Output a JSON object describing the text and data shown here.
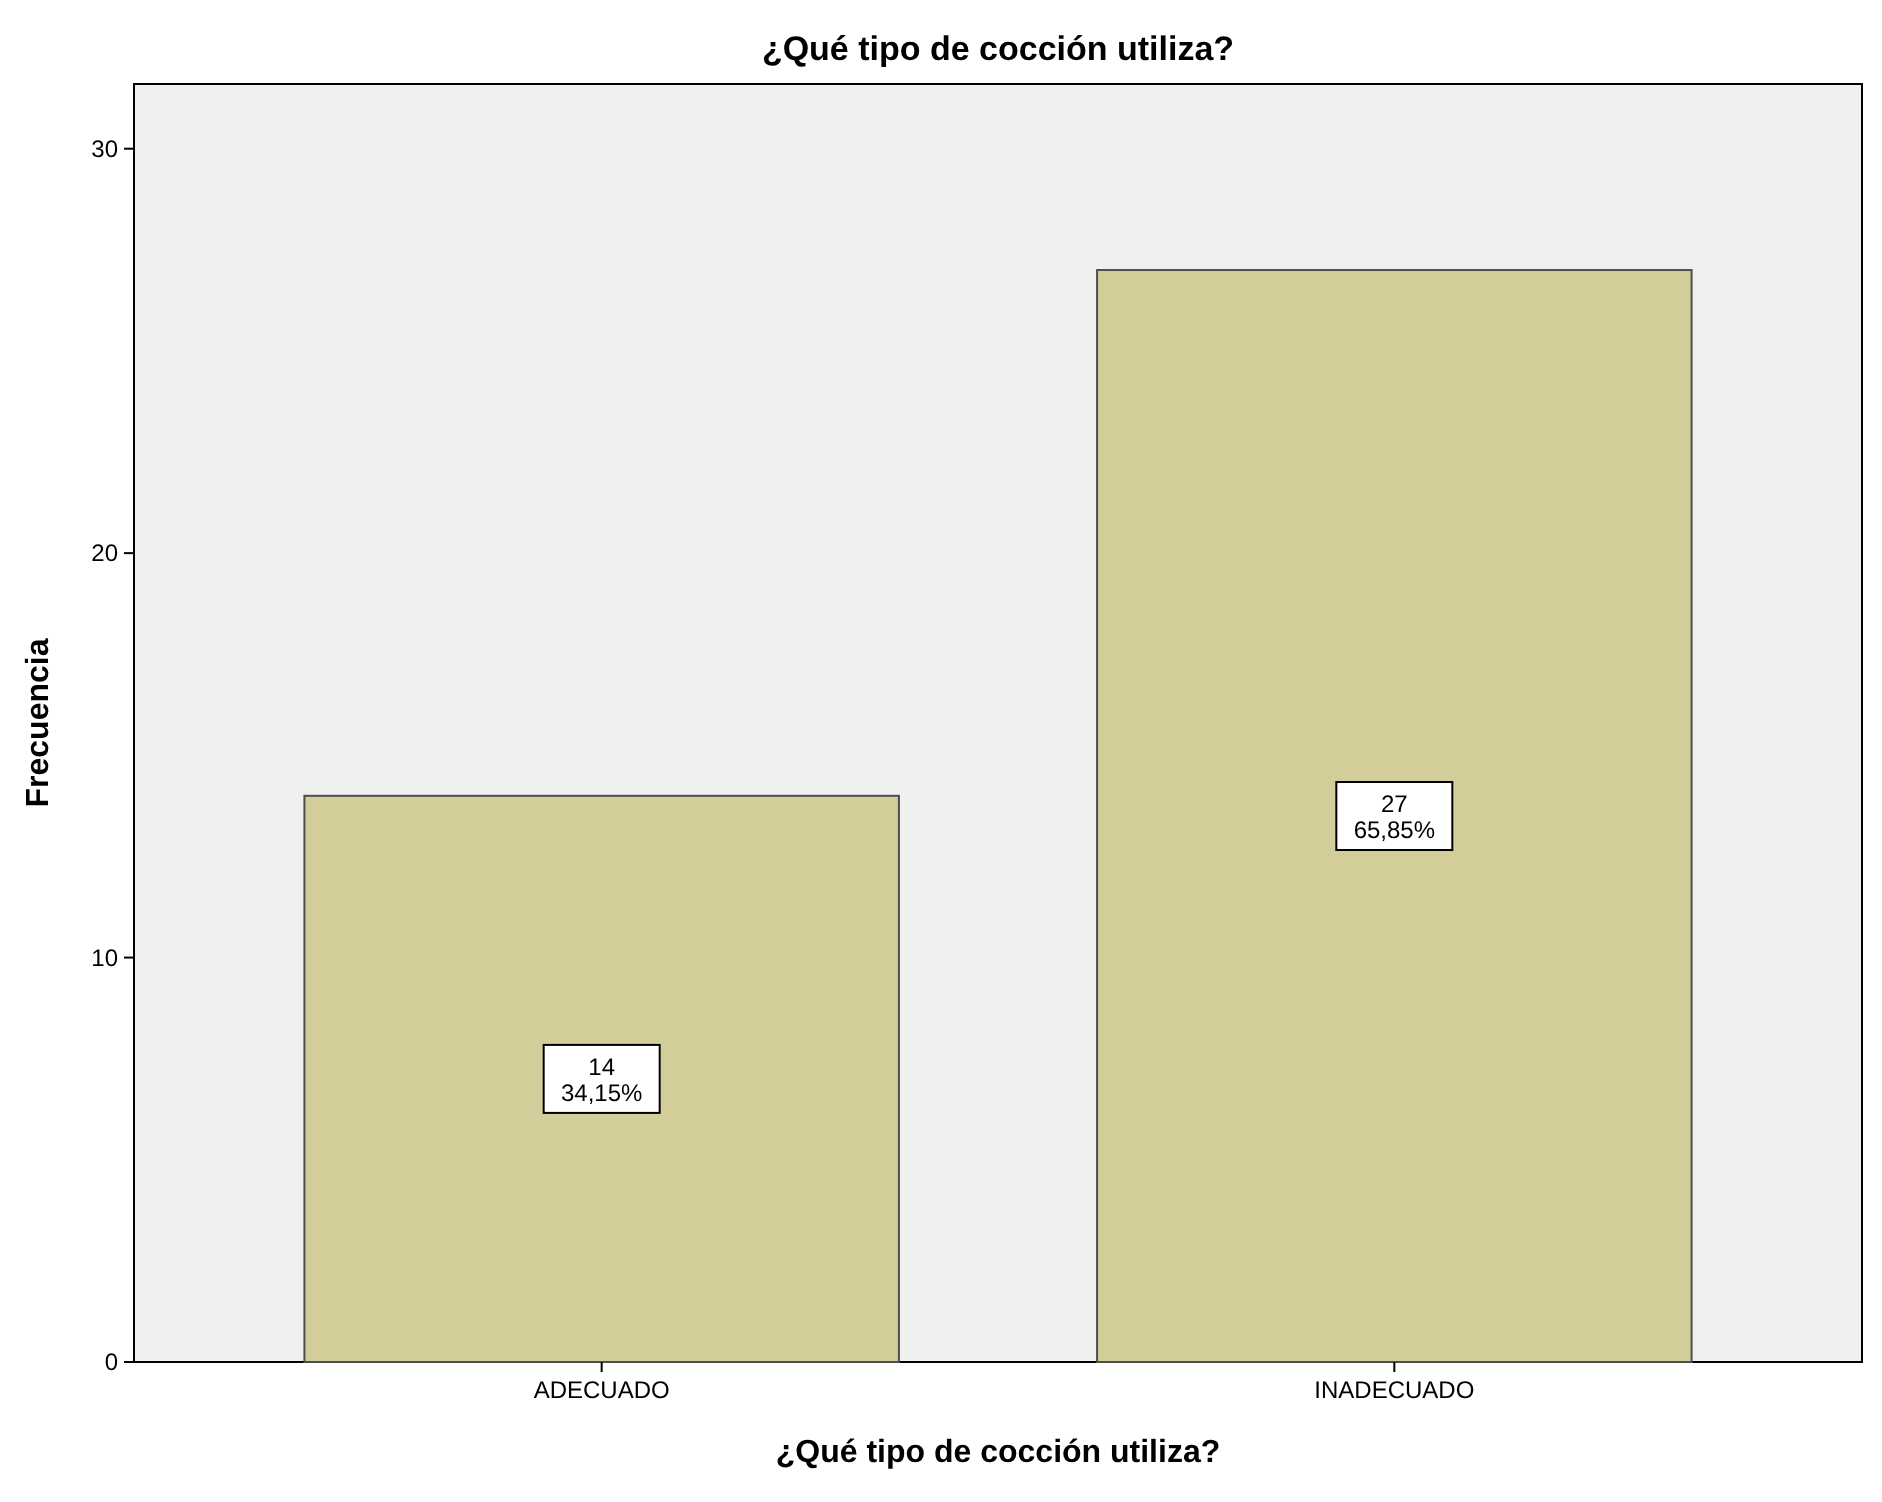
{
  "chart_data": {
    "type": "bar",
    "title": "¿Qué tipo de cocción utiliza?",
    "xlabel": "¿Qué tipo de cocción utiliza?",
    "ylabel": "Frecuencia",
    "categories": [
      "ADECUADO",
      "INADECUADO"
    ],
    "values": [
      14,
      27
    ],
    "color": "#d3ce99",
    "value_labels": [
      "14\n34,15%",
      "27\n65,85%"
    ],
    "ylim": [
      0,
      31.6
    ],
    "yticks": [
      0,
      10,
      20,
      30
    ],
    "grid": false
  }
}
